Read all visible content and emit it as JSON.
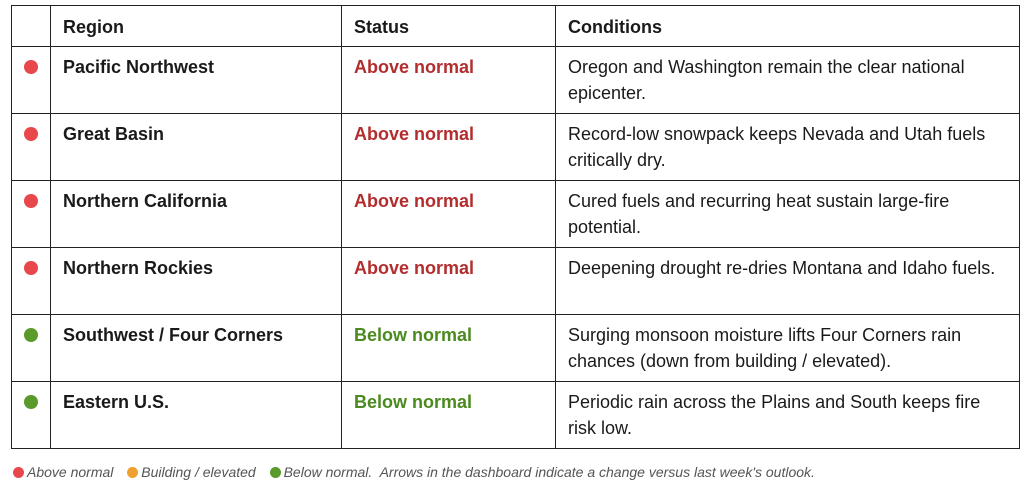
{
  "colors": {
    "above": "#e8474c",
    "building": "#f0a030",
    "below": "#5a9a2a",
    "status_above_text": "#b32d2e",
    "status_below_text": "#4a8a1e"
  },
  "table": {
    "headers": {
      "dot": "",
      "region": "Region",
      "status": "Status",
      "conditions": "Conditions"
    },
    "rows": [
      {
        "level": "above",
        "region": "Pacific Northwest",
        "status": "Above normal",
        "conditions": "Oregon and Washington remain the clear national epicenter."
      },
      {
        "level": "above",
        "region": "Great Basin",
        "status": "Above normal",
        "conditions": "Record-low snowpack keeps Nevada and Utah fuels critically dry."
      },
      {
        "level": "above",
        "region": "Northern California",
        "status": "Above normal",
        "conditions": "Cured fuels and recurring heat sustain large-fire potential."
      },
      {
        "level": "above",
        "region": "Northern Rockies",
        "status": "Above normal",
        "conditions": "Deepening drought re-dries Montana and Idaho fuels."
      },
      {
        "level": "below",
        "region": "Southwest / Four Corners",
        "status": "Below normal",
        "conditions": "Surging monsoon moisture lifts Four Corners rain chances (down from building / elevated)."
      },
      {
        "level": "below",
        "region": "Eastern U.S.",
        "status": "Below normal",
        "conditions": "Periodic rain across the Plains and South keeps fire risk low."
      }
    ]
  },
  "legend": {
    "above": "Above normal",
    "building": "Building / elevated",
    "below": "Below normal.",
    "note": "Arrows in the dashboard indicate a change versus last week's outlook."
  }
}
